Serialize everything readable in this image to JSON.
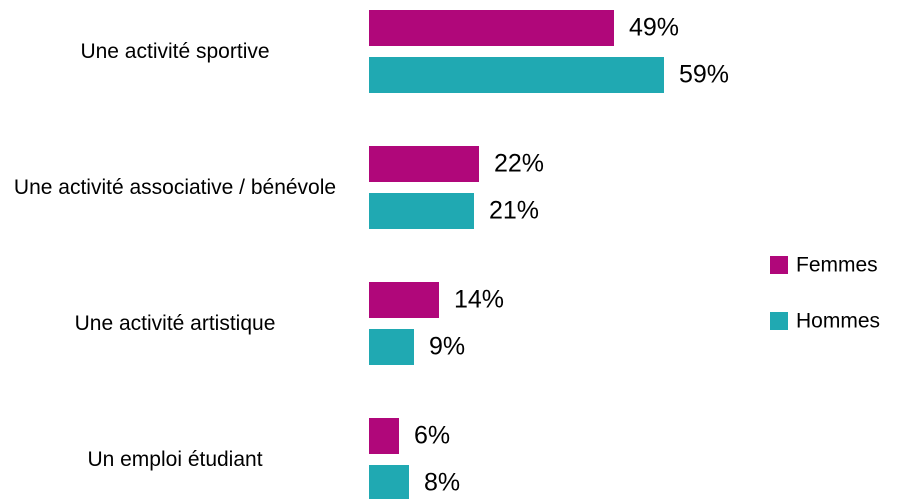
{
  "chart_data": {
    "type": "bar",
    "orientation": "horizontal",
    "categories": [
      "Une activité sportive",
      "Une activité associative / bénévole",
      "Une activité artistique",
      "Un emploi étudiant"
    ],
    "series": [
      {
        "name": "Femmes",
        "color": "#b0077a",
        "values": [
          49,
          22,
          14,
          6
        ],
        "value_labels": [
          "49%",
          "22%",
          "14%",
          "6%"
        ]
      },
      {
        "name": "Hommes",
        "color": "#20a9b2",
        "values": [
          59,
          21,
          9,
          8
        ],
        "value_labels": [
          "59%",
          "21%",
          "9%",
          "8%"
        ]
      }
    ],
    "xlim": [
      0,
      100
    ],
    "legend": "right"
  }
}
